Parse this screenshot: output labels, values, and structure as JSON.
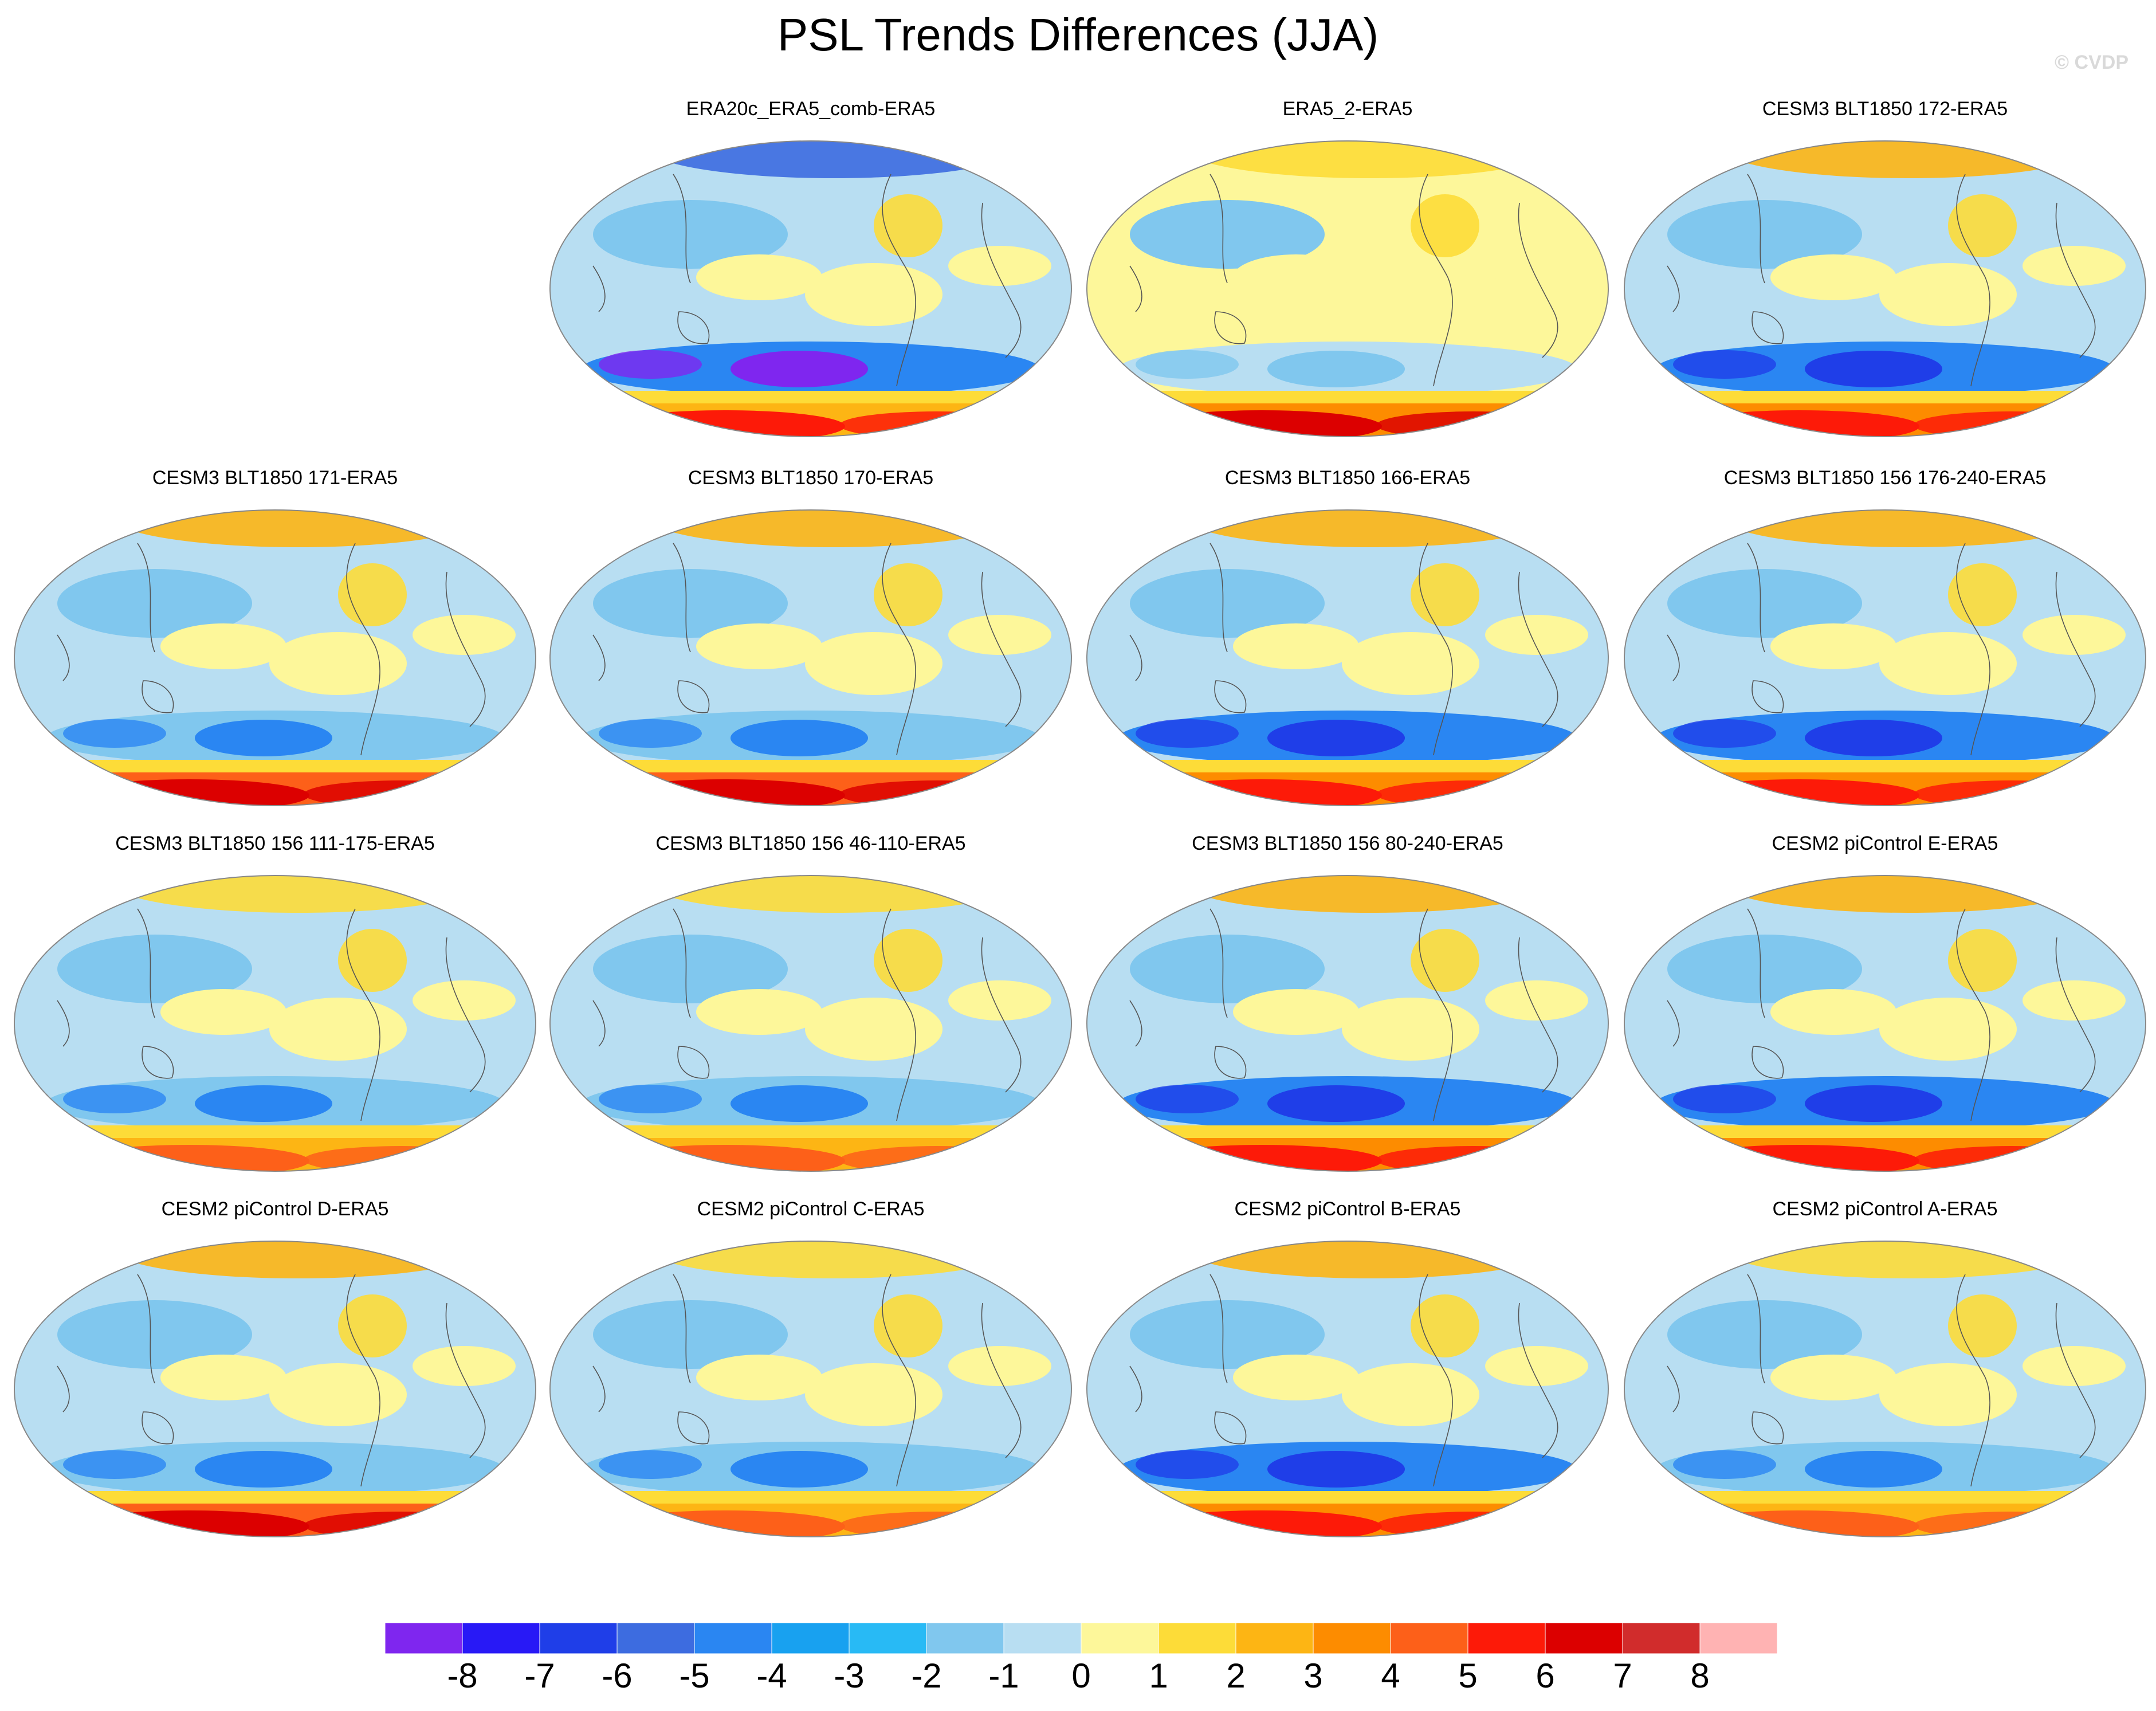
{
  "title": "PSL Trends Differences (JJA)",
  "watermark": "© CVDP",
  "panels": [
    {
      "label": "ERA20c_ERA5_comb-ERA5",
      "style": "a"
    },
    {
      "label": "ERA5_2-ERA5",
      "style": "b"
    },
    {
      "label": "CESM3 BLT1850 172-ERA5",
      "style": "c"
    },
    {
      "label": "CESM3 BLT1850 171-ERA5",
      "style": "d"
    },
    {
      "label": "CESM3 BLT1850 170-ERA5",
      "style": "d"
    },
    {
      "label": "CESM3 BLT1850 166-ERA5",
      "style": "c"
    },
    {
      "label": "CESM3 BLT1850 156 176-240-ERA5",
      "style": "c"
    },
    {
      "label": "CESM3 BLT1850 156 111-175-ERA5",
      "style": "e"
    },
    {
      "label": "CESM3 BLT1850 156 46-110-ERA5",
      "style": "e"
    },
    {
      "label": "CESM3 BLT1850 156 80-240-ERA5",
      "style": "c"
    },
    {
      "label": "CESM2 piControl E-ERA5",
      "style": "c"
    },
    {
      "label": "CESM2 piControl D-ERA5",
      "style": "d"
    },
    {
      "label": "CESM2 piControl C-ERA5",
      "style": "e"
    },
    {
      "label": "CESM2 piControl B-ERA5",
      "style": "c"
    },
    {
      "label": "CESM2 piControl A-ERA5",
      "style": "e"
    }
  ],
  "colorbar": {
    "labels": [
      "-8",
      "-7",
      "-6",
      "-5",
      "-4",
      "-3",
      "-2",
      "-1",
      "0",
      "1",
      "2",
      "3",
      "4",
      "5",
      "6",
      "7",
      "8"
    ],
    "colors": [
      "#7f26ef",
      "#2819f6",
      "#1f3ee8",
      "#3d6ce0",
      "#2a86f2",
      "#18a1f0",
      "#28baf5",
      "#80c7ee",
      "#b8def2",
      "#fdf79a",
      "#fddc38",
      "#fdb514",
      "#fd8c00",
      "#fd6019",
      "#fd1a08",
      "#dc0000",
      "#d12c2c",
      "#ffb3b3"
    ]
  }
}
